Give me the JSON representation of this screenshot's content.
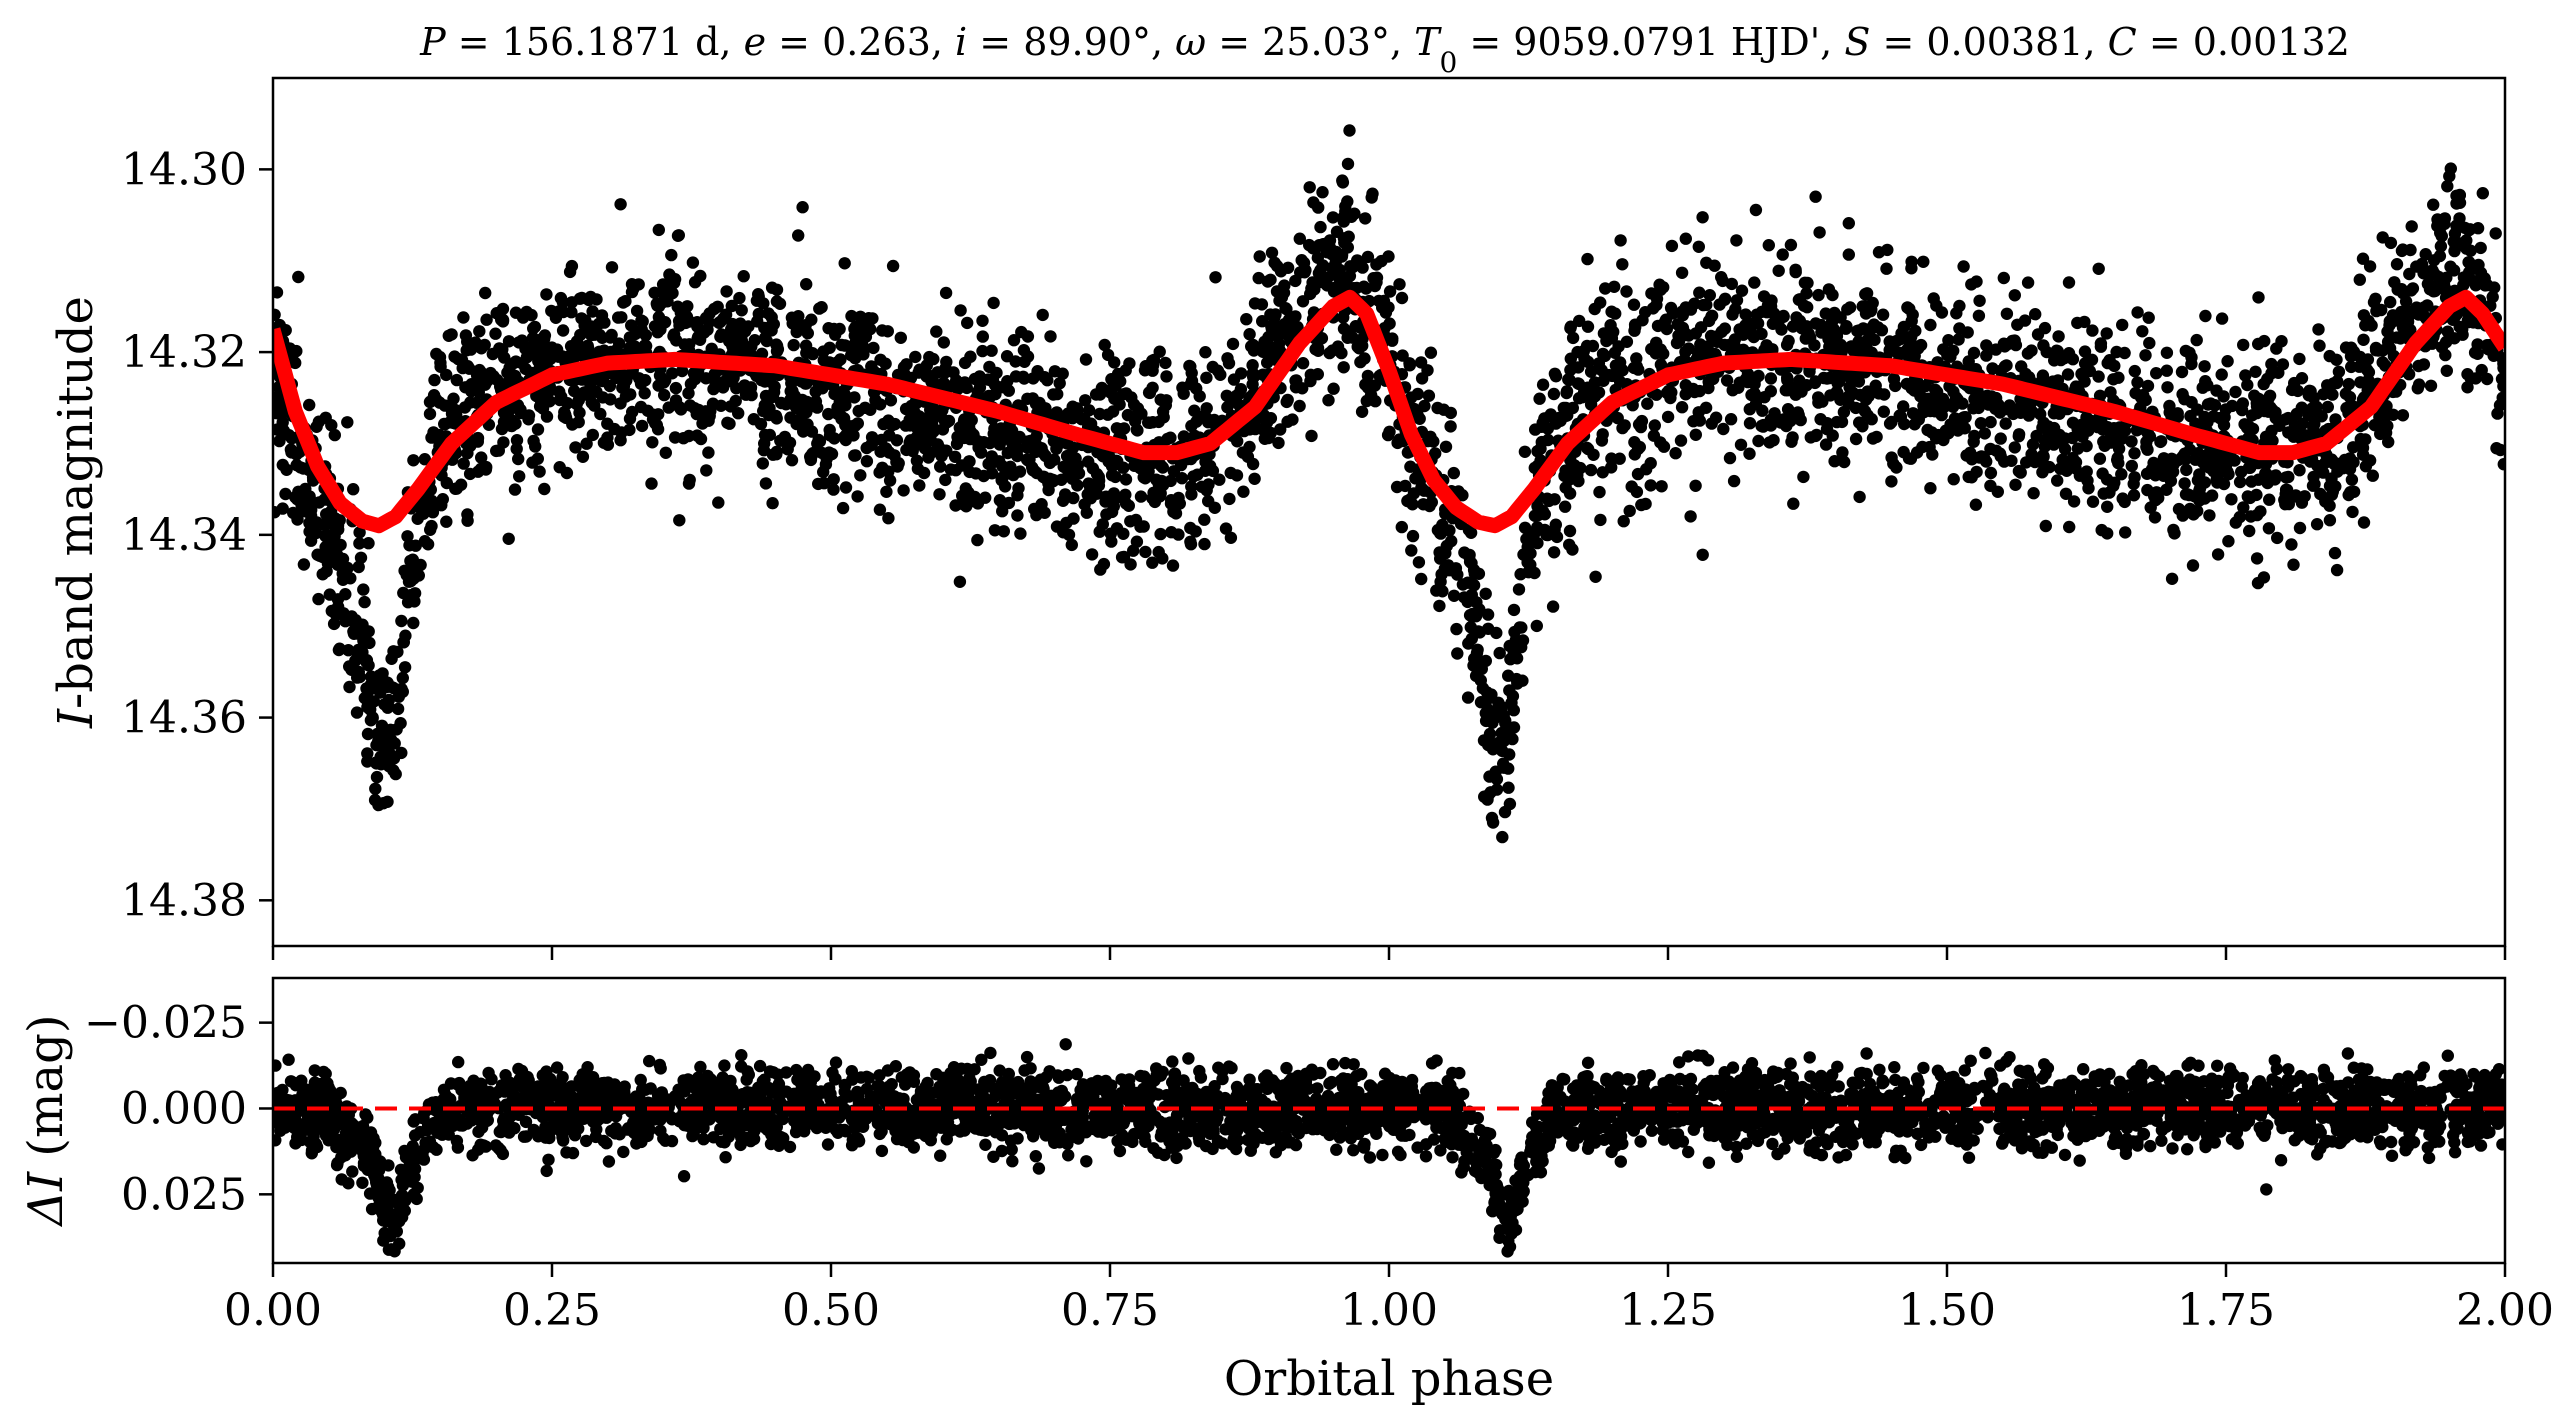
{
  "figure": {
    "title_parts": {
      "p_sym": "P",
      "p_val": " = 156.1871 d, ",
      "e_sym": "e",
      "e_val": " = 0.263, ",
      "i_sym": "i",
      "i_val": " = 89.90°, ",
      "w_sym": "ω",
      "w_val": " = 25.03°, ",
      "t_sym": "T",
      "t_sub": "0",
      "t_val": " = 9059.0791 HJD', ",
      "s_sym": "S",
      "s_val": " = 0.00381, ",
      "c_sym": "C",
      "c_val": " = 0.00132"
    }
  },
  "chart_data": [
    {
      "type": "scatter",
      "panel": "top",
      "ylabel_italic": "I",
      "ylabel_rest": "-band magnitude",
      "xlim": [
        0.0,
        2.0
      ],
      "ylim": [
        14.385,
        14.29
      ],
      "y_inverted": true,
      "yticks": [
        14.3,
        14.32,
        14.34,
        14.36,
        14.38
      ],
      "ytick_labels": [
        "14.30",
        "14.32",
        "14.34",
        "14.36",
        "14.38"
      ],
      "xticks": [
        0.0,
        0.25,
        0.5,
        0.75,
        1.0,
        1.25,
        1.5,
        1.75,
        2.0
      ],
      "series": [
        {
          "kind": "points",
          "color": "#000000",
          "note_points": "dense photometric points, approximately the model curve plus scatter of about ±0.012 mag",
          "x": [
            0.0,
            0.02,
            0.04,
            0.06,
            0.08,
            0.09,
            0.1,
            0.11,
            0.12,
            0.14,
            0.17,
            0.2,
            0.25,
            0.3,
            0.36,
            0.45,
            0.55,
            0.65,
            0.75,
            0.8,
            0.85,
            0.9,
            0.935,
            0.965,
            0.99,
            1.02,
            1.04,
            1.06,
            1.08,
            1.09,
            1.1,
            1.11,
            1.12,
            1.14,
            1.17,
            1.2,
            1.25,
            1.3,
            1.36,
            1.45,
            1.55,
            1.65,
            1.75,
            1.8,
            1.85,
            1.9,
            1.935,
            1.965,
            1.99,
            2.0
          ],
          "y": [
            14.322,
            14.33,
            14.337,
            14.343,
            14.352,
            14.36,
            14.364,
            14.358,
            14.345,
            14.332,
            14.326,
            14.324,
            14.322,
            14.321,
            14.321,
            14.322,
            14.325,
            14.328,
            14.331,
            14.331,
            14.328,
            14.32,
            14.314,
            14.311,
            14.318,
            14.328,
            14.335,
            14.341,
            14.35,
            14.36,
            14.364,
            14.358,
            14.345,
            14.332,
            14.326,
            14.324,
            14.322,
            14.321,
            14.321,
            14.322,
            14.325,
            14.328,
            14.331,
            14.331,
            14.328,
            14.32,
            14.314,
            14.311,
            14.318,
            14.321
          ]
        },
        {
          "kind": "model",
          "color": "#ff0000",
          "x": [
            0.0,
            0.02,
            0.04,
            0.06,
            0.08,
            0.095,
            0.11,
            0.13,
            0.16,
            0.2,
            0.25,
            0.3,
            0.36,
            0.45,
            0.55,
            0.65,
            0.72,
            0.78,
            0.81,
            0.84,
            0.88,
            0.92,
            0.95,
            0.965,
            0.98,
            1.0,
            1.02,
            1.04,
            1.06,
            1.08,
            1.095,
            1.11,
            1.13,
            1.16,
            1.2,
            1.25,
            1.3,
            1.36,
            1.45,
            1.55,
            1.65,
            1.72,
            1.78,
            1.81,
            1.84,
            1.88,
            1.92,
            1.95,
            1.965,
            1.98,
            2.0
          ],
          "y": [
            14.3175,
            14.3265,
            14.3325,
            14.3365,
            14.3385,
            14.339,
            14.338,
            14.335,
            14.33,
            14.3255,
            14.3225,
            14.3212,
            14.3208,
            14.3215,
            14.3235,
            14.3265,
            14.329,
            14.331,
            14.331,
            14.33,
            14.326,
            14.319,
            14.315,
            14.314,
            14.3158,
            14.322,
            14.329,
            14.334,
            14.337,
            14.3386,
            14.339,
            14.338,
            14.335,
            14.33,
            14.3255,
            14.3225,
            14.3212,
            14.3208,
            14.3215,
            14.3235,
            14.3265,
            14.329,
            14.331,
            14.331,
            14.33,
            14.326,
            14.319,
            14.315,
            14.314,
            14.3158,
            14.3195
          ]
        }
      ]
    },
    {
      "type": "scatter",
      "panel": "bottom",
      "ylabel_sym": "ΔI",
      "ylabel_rest": " (mag)",
      "xlabel": "Orbital phase",
      "xlim": [
        0.0,
        2.0
      ],
      "ylim": [
        0.045,
        -0.038
      ],
      "y_inverted": true,
      "yticks": [
        -0.025,
        0.0,
        0.025
      ],
      "ytick_labels": [
        "−0.025",
        "0.000",
        "0.025"
      ],
      "xticks": [
        0.0,
        0.25,
        0.5,
        0.75,
        1.0,
        1.25,
        1.5,
        1.75,
        2.0
      ],
      "xtick_labels": [
        "0.00",
        "0.25",
        "0.50",
        "0.75",
        "1.00",
        "1.25",
        "1.50",
        "1.75",
        "2.00"
      ],
      "series": [
        {
          "kind": "points",
          "color": "#000000",
          "x": [
            0.0,
            0.05,
            0.09,
            0.1,
            0.11,
            0.12,
            0.15,
            0.25,
            0.5,
            0.75,
            1.0,
            1.05,
            1.09,
            1.1,
            1.11,
            1.12,
            1.15,
            1.25,
            1.5,
            1.75,
            2.0
          ],
          "y": [
            0.0,
            0.0,
            0.015,
            0.03,
            0.032,
            0.018,
            0.0,
            0.0,
            0.0,
            0.0,
            0.0,
            0.0,
            0.015,
            0.03,
            0.032,
            0.018,
            0.0,
            0.0,
            0.0,
            0.0,
            0.0
          ]
        },
        {
          "kind": "zero-line",
          "color": "#ff0000",
          "style": "dashed",
          "y": 0.0
        }
      ]
    }
  ]
}
